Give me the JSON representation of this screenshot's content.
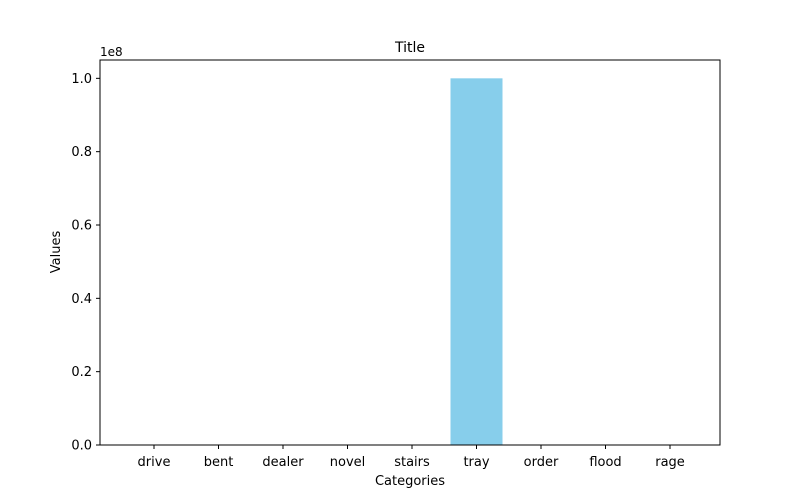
{
  "chart_data": {
    "type": "bar",
    "title": "Title",
    "xlabel": "Categories",
    "ylabel": "Values",
    "y_offset_label": "1e8",
    "categories": [
      "drive",
      "bent",
      "dealer",
      "novel",
      "stairs",
      "tray",
      "order",
      "flood",
      "rage"
    ],
    "values": [
      0,
      0,
      0,
      0,
      0,
      100000000,
      0,
      0,
      0
    ],
    "ylim": [
      0,
      105000000
    ],
    "yticks": [
      0,
      20000000,
      40000000,
      60000000,
      80000000,
      100000000
    ],
    "ytick_labels": [
      "0.0",
      "0.2",
      "0.4",
      "0.6",
      "0.8",
      "1.0"
    ],
    "bar_color": "#87ceeb",
    "grid": false,
    "legend": "none"
  }
}
